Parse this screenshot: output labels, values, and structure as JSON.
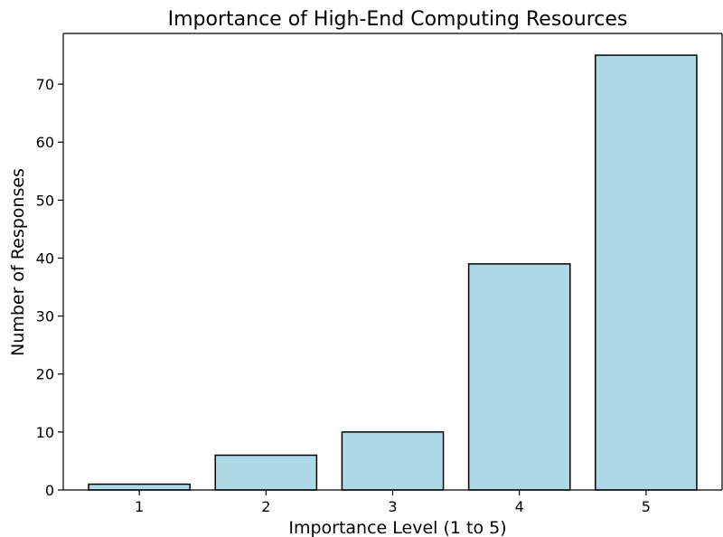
{
  "chart_data": {
    "type": "bar",
    "title": "Importance of High-End Computing Resources",
    "xlabel": "Importance Level (1 to 5)",
    "ylabel": "Number of Responses",
    "categories": [
      "1",
      "2",
      "3",
      "4",
      "5"
    ],
    "values": [
      1,
      6,
      10,
      39,
      75
    ],
    "ylim": [
      0,
      78.75
    ],
    "yticks": [
      0,
      10,
      20,
      30,
      40,
      50,
      60,
      70
    ],
    "grid": false,
    "legend": "none",
    "bar_color": "#add8e6",
    "bar_edge_color": "#000000"
  }
}
